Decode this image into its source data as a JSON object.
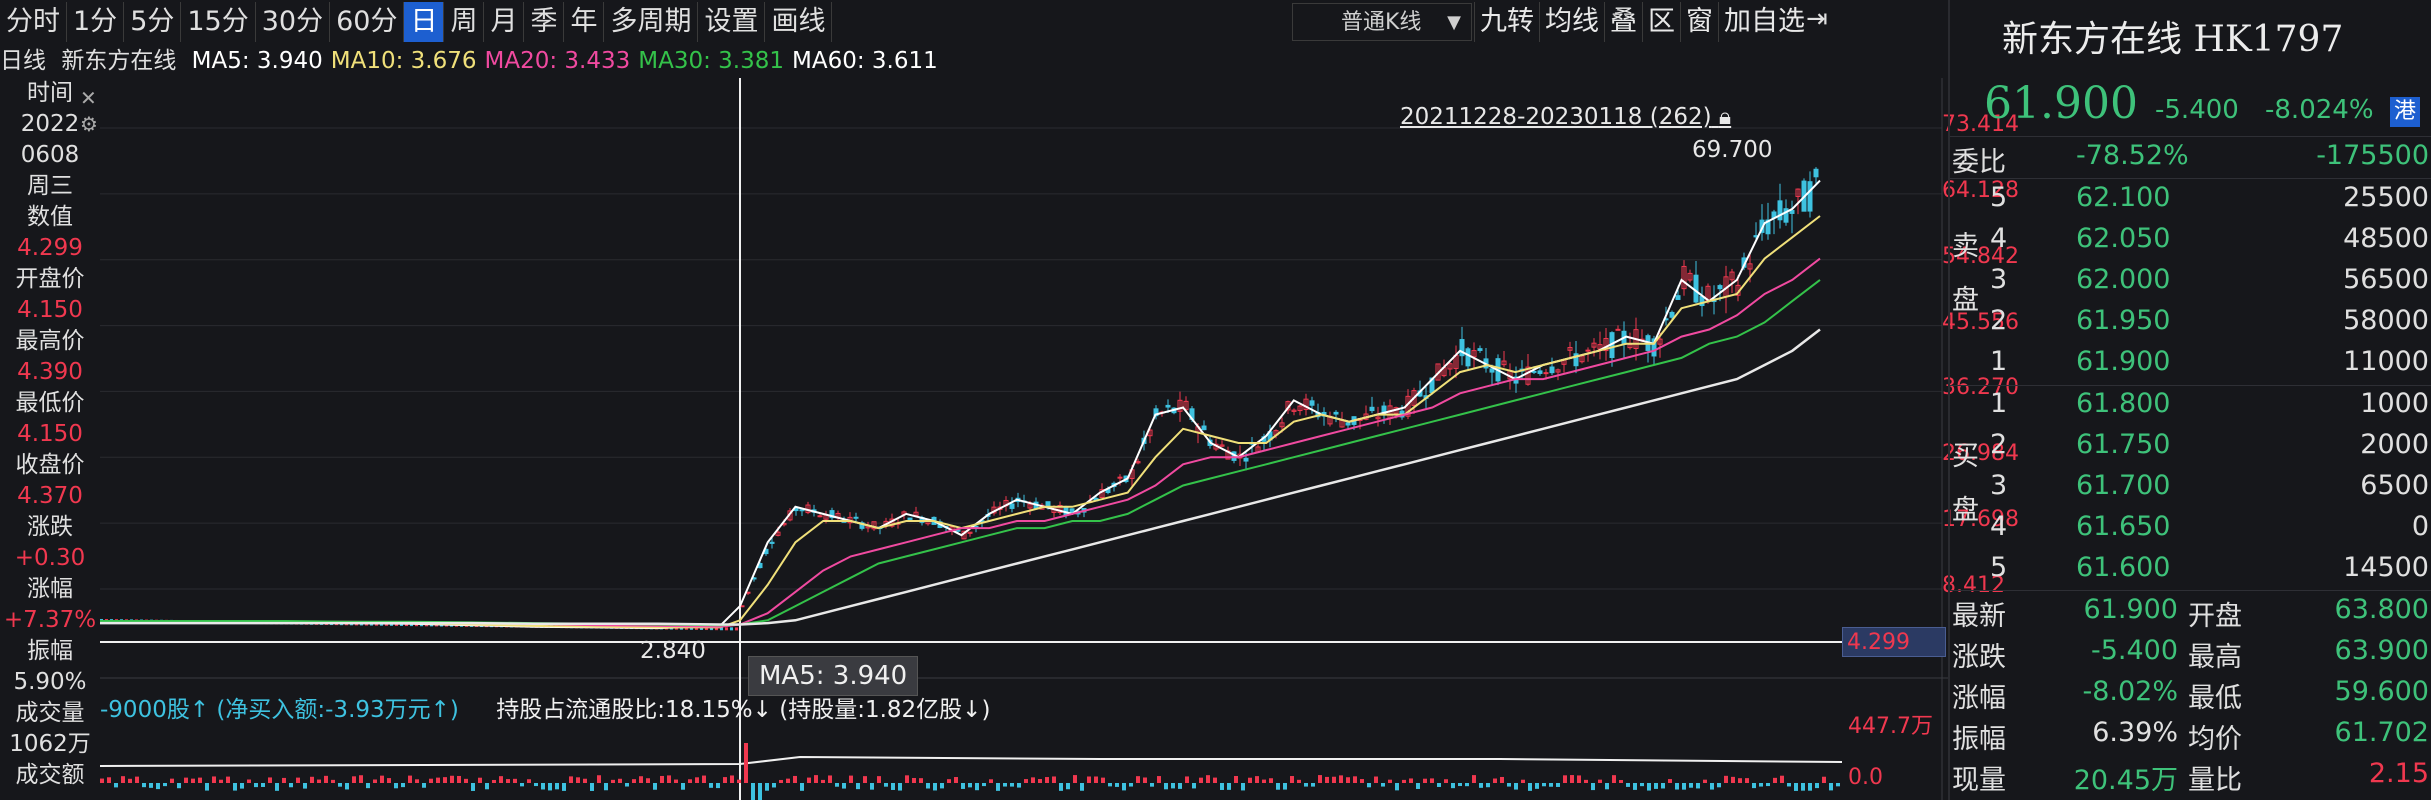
{
  "toolbar": {
    "tabs": [
      "分时",
      "1分",
      "5分",
      "15分",
      "30分",
      "60分",
      "日",
      "周",
      "月",
      "季",
      "年",
      "多周期",
      "设置",
      "画线"
    ],
    "active_tab": "日",
    "kline_select": "普通K线",
    "tools": [
      "九转",
      "均线",
      "叠",
      "区",
      "窗",
      "加自选"
    ]
  },
  "ma_legend": {
    "prefix": "日线",
    "name": "新东方在线",
    "items": [
      {
        "label": "MA5: 3.940",
        "color": "#ffffff"
      },
      {
        "label": "MA10: 3.676",
        "color": "#f0e07a"
      },
      {
        "label": "MA20: 3.433",
        "color": "#f04aa0"
      },
      {
        "label": "MA30: 3.381",
        "color": "#34c24a"
      },
      {
        "label": "MA60: 3.611",
        "color": "#ffffff"
      }
    ]
  },
  "left_panel": [
    {
      "text": "时间",
      "cls": "lbl"
    },
    {
      "text": "2022",
      "cls": "lbl"
    },
    {
      "text": "0608",
      "cls": "lbl"
    },
    {
      "text": "周三",
      "cls": "lbl"
    },
    {
      "text": "数值",
      "cls": "lbl"
    },
    {
      "text": "4.299",
      "cls": "red"
    },
    {
      "text": "开盘价",
      "cls": "lbl"
    },
    {
      "text": "4.150",
      "cls": "red"
    },
    {
      "text": "最高价",
      "cls": "lbl"
    },
    {
      "text": "4.390",
      "cls": "red"
    },
    {
      "text": "最低价",
      "cls": "lbl"
    },
    {
      "text": "4.150",
      "cls": "red"
    },
    {
      "text": "收盘价",
      "cls": "lbl"
    },
    {
      "text": "4.370",
      "cls": "red"
    },
    {
      "text": "涨跌",
      "cls": "lbl"
    },
    {
      "text": "+0.30",
      "cls": "red"
    },
    {
      "text": "涨幅",
      "cls": "lbl"
    },
    {
      "text": "+7.37%",
      "cls": "red"
    },
    {
      "text": "振幅",
      "cls": "lbl"
    },
    {
      "text": "5.90%",
      "cls": "lbl"
    },
    {
      "text": "成交量",
      "cls": "lbl"
    },
    {
      "text": "1062万",
      "cls": "lbl"
    },
    {
      "text": "成交额",
      "cls": "lbl"
    }
  ],
  "chart": {
    "y_ticks": [
      "73.414",
      "64.128",
      "54.842",
      "45.556",
      "36.270",
      "26.984",
      "17.698",
      "8.412"
    ],
    "crosshair_value": "4.299",
    "range_label": "20211228-20230118 (262)",
    "high_label": "69.700",
    "low_label": "2.840",
    "tooltip": "MA5: 3.940",
    "holding_text": "-9000股↑ (净买入额:-3.93万元↑)",
    "holding_ratio": "持股占流通股比:18.15%↓ (持股量:1.82亿股↓)",
    "vol_ticks": [
      "447.7万",
      "0.0"
    ]
  },
  "right_panel": {
    "title": "新东方在线 HK1797",
    "price": "61.900",
    "change": "-5.400",
    "change_pct": "-8.024%",
    "market_badge": "港",
    "weibi_label": "委比",
    "weibi_pct": "-78.52%",
    "weibi_val": "-175500",
    "sell_label": "卖盘",
    "buy_label": "买盘",
    "asks": [
      {
        "lvl": "5",
        "price": "62.100",
        "vol": "25500"
      },
      {
        "lvl": "4",
        "price": "62.050",
        "vol": "48500"
      },
      {
        "lvl": "3",
        "price": "62.000",
        "vol": "56500"
      },
      {
        "lvl": "2",
        "price": "61.950",
        "vol": "58000"
      },
      {
        "lvl": "1",
        "price": "61.900",
        "vol": "11000"
      }
    ],
    "bids": [
      {
        "lvl": "1",
        "price": "61.800",
        "vol": "1000"
      },
      {
        "lvl": "2",
        "price": "61.750",
        "vol": "2000"
      },
      {
        "lvl": "3",
        "price": "61.700",
        "vol": "6500"
      },
      {
        "lvl": "4",
        "price": "61.650",
        "vol": "0"
      },
      {
        "lvl": "5",
        "price": "61.600",
        "vol": "14500"
      }
    ],
    "stats": [
      {
        "l1": "最新",
        "v1": "61.900",
        "c1": "g",
        "l2": "开盘",
        "v2": "63.800",
        "c2": "g"
      },
      {
        "l1": "涨跌",
        "v1": "-5.400",
        "c1": "g",
        "l2": "最高",
        "v2": "63.900",
        "c2": "g"
      },
      {
        "l1": "涨幅",
        "v1": "-8.02%",
        "c1": "g",
        "l2": "最低",
        "v2": "59.600",
        "c2": "g"
      },
      {
        "l1": "振幅",
        "v1": "6.39%",
        "c1": "w",
        "l2": "均价",
        "v2": "61.702",
        "c2": "g"
      },
      {
        "l1": "现量",
        "v1": "20.45万",
        "c1": "g",
        "l2": "量比",
        "v2": "2.15",
        "c2": "r"
      }
    ]
  },
  "chart_data": {
    "type": "candlestick",
    "ylim": [
      0,
      73.414
    ],
    "series": [
      {
        "name": "MA5",
        "values": [
          3.9,
          3.9,
          3.8,
          3.7,
          3.6,
          3.5,
          3.3,
          3.1,
          3.0,
          2.9,
          3.2,
          6,
          15,
          20,
          19,
          18,
          17,
          19,
          18,
          16,
          19,
          21,
          20,
          19,
          22,
          24,
          33,
          34,
          29,
          27,
          30,
          35,
          33,
          32,
          33,
          34,
          38,
          42,
          40,
          38,
          40,
          41,
          42,
          44,
          43,
          52,
          49,
          52,
          60,
          62,
          66
        ]
      },
      {
        "name": "MA10",
        "values": [
          3.9,
          3.9,
          3.8,
          3.8,
          3.7,
          3.6,
          3.4,
          3.2,
          3.1,
          3.0,
          3.0,
          4,
          9,
          15,
          18,
          18,
          17,
          18,
          18,
          17,
          18,
          19,
          20,
          20,
          21,
          22,
          27,
          31,
          30,
          29,
          29,
          32,
          33,
          32,
          33,
          33,
          36,
          39,
          40,
          39,
          40,
          41,
          42,
          43,
          43,
          48,
          49,
          50,
          55,
          58,
          61
        ]
      },
      {
        "name": "MA20",
        "values": [
          3.9,
          3.9,
          3.9,
          3.8,
          3.8,
          3.7,
          3.6,
          3.5,
          3.3,
          3.2,
          3.1,
          3.4,
          5,
          8,
          11,
          13,
          14,
          15,
          16,
          17,
          17,
          18,
          18,
          19,
          20,
          21,
          23,
          26,
          27,
          27,
          28,
          29,
          30,
          31,
          32,
          33,
          34,
          36,
          37,
          38,
          38,
          39,
          40,
          41,
          42,
          44,
          45,
          47,
          50,
          52,
          55
        ]
      },
      {
        "name": "MA30",
        "values": [
          3.9,
          3.9,
          3.9,
          3.9,
          3.8,
          3.8,
          3.7,
          3.6,
          3.5,
          3.4,
          3.3,
          3.4,
          4,
          6,
          8,
          10,
          12,
          13,
          14,
          15,
          16,
          17,
          17,
          18,
          18,
          19,
          21,
          23,
          24,
          25,
          26,
          27,
          28,
          29,
          30,
          31,
          32,
          33,
          34,
          35,
          36,
          37,
          38,
          39,
          40,
          41,
          43,
          44,
          46,
          49,
          52
        ]
      },
      {
        "name": "MA60",
        "values": [
          3.6,
          3.6,
          3.6,
          3.6,
          3.6,
          3.6,
          3.6,
          3.5,
          3.5,
          3.5,
          3.4,
          3.4,
          3.6,
          4,
          5,
          6,
          7,
          8,
          9,
          10,
          11,
          12,
          13,
          14,
          15,
          16,
          17,
          18,
          19,
          20,
          21,
          22,
          23,
          24,
          25,
          26,
          27,
          28,
          29,
          30,
          31,
          32,
          33,
          34,
          35,
          36,
          37,
          38,
          40,
          42,
          45
        ]
      }
    ]
  }
}
